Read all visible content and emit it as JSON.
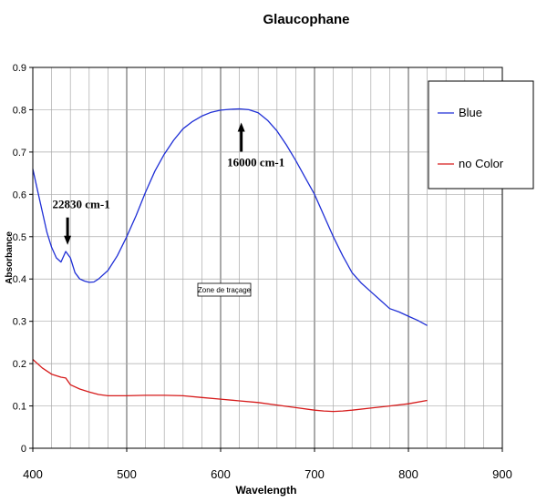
{
  "chart_data": {
    "type": "line",
    "title": "Glaucophane",
    "xlabel": "Wavelength",
    "ylabel": "Absorbance",
    "xlim": [
      400,
      900
    ],
    "ylim": [
      0,
      0.9
    ],
    "x_ticks": [
      400,
      500,
      600,
      700,
      800,
      900
    ],
    "y_ticks": [
      0,
      0.1,
      0.2,
      0.3,
      0.4,
      0.5,
      0.6,
      0.7,
      0.8,
      0.9
    ],
    "grid": true,
    "legend_position": "top-right",
    "series": [
      {
        "name": "Blue",
        "color": "#1f2fd6",
        "x": [
          400,
          405,
          410,
          415,
          420,
          425,
          430,
          435,
          440,
          445,
          450,
          455,
          460,
          465,
          470,
          480,
          490,
          500,
          510,
          520,
          530,
          540,
          550,
          560,
          570,
          580,
          590,
          600,
          610,
          620,
          630,
          640,
          650,
          660,
          670,
          680,
          690,
          700,
          710,
          720,
          730,
          740,
          750,
          760,
          770,
          780,
          790,
          800,
          810,
          820
        ],
        "y": [
          0.66,
          0.61,
          0.56,
          0.51,
          0.475,
          0.45,
          0.44,
          0.465,
          0.45,
          0.415,
          0.4,
          0.395,
          0.392,
          0.393,
          0.4,
          0.42,
          0.455,
          0.5,
          0.55,
          0.605,
          0.655,
          0.695,
          0.728,
          0.755,
          0.772,
          0.785,
          0.794,
          0.799,
          0.801,
          0.802,
          0.8,
          0.793,
          0.775,
          0.75,
          0.717,
          0.68,
          0.64,
          0.6,
          0.55,
          0.5,
          0.455,
          0.415,
          0.39,
          0.37,
          0.35,
          0.33,
          0.322,
          0.312,
          0.302,
          0.29
        ]
      },
      {
        "name": "no Color",
        "color": "#d61a1a",
        "x": [
          400,
          410,
          420,
          430,
          435,
          440,
          450,
          460,
          470,
          480,
          500,
          520,
          540,
          560,
          580,
          600,
          620,
          640,
          660,
          680,
          700,
          710,
          720,
          730,
          740,
          760,
          780,
          800,
          820
        ],
        "y": [
          0.21,
          0.19,
          0.175,
          0.168,
          0.166,
          0.15,
          0.14,
          0.133,
          0.127,
          0.124,
          0.124,
          0.125,
          0.125,
          0.124,
          0.12,
          0.116,
          0.112,
          0.108,
          0.102,
          0.096,
          0.09,
          0.088,
          0.087,
          0.088,
          0.09,
          0.095,
          0.1,
          0.105,
          0.113
        ]
      }
    ],
    "annotations": [
      {
        "text": "22830 cm-1",
        "x": 437,
        "y": 0.47
      },
      {
        "text": "16000 cm-1",
        "x": 622,
        "y": 0.8
      }
    ],
    "zone_label": "Zone de traçage"
  }
}
